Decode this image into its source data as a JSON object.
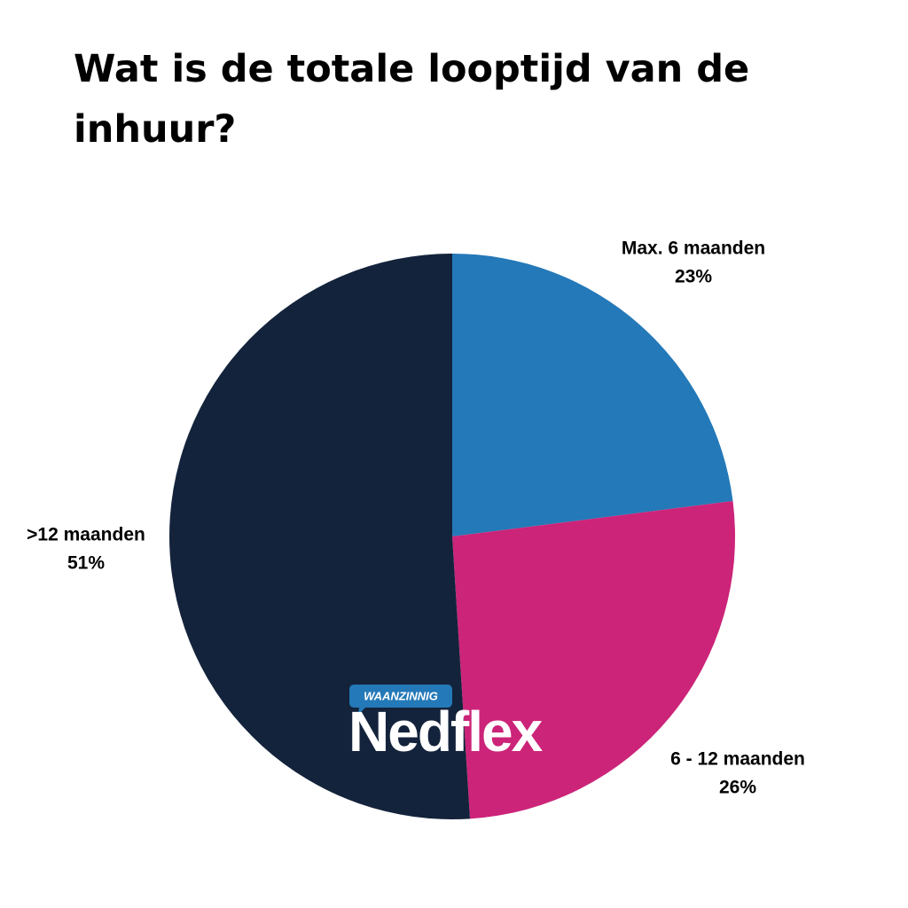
{
  "chart_data": {
    "type": "pie",
    "title": "Wat is de totale looptijd van de inhuur?",
    "categories": [
      "Max. 6 maanden",
      "6 - 12 maanden",
      ">12 maanden"
    ],
    "values": [
      23,
      26,
      51
    ],
    "value_labels": [
      "23%",
      "26%",
      "51%"
    ],
    "colors": [
      "#2479b8",
      "#cc2479",
      "#13233b"
    ]
  },
  "logo": {
    "tag": "WAANZINNIG",
    "name": "Nedflex"
  }
}
